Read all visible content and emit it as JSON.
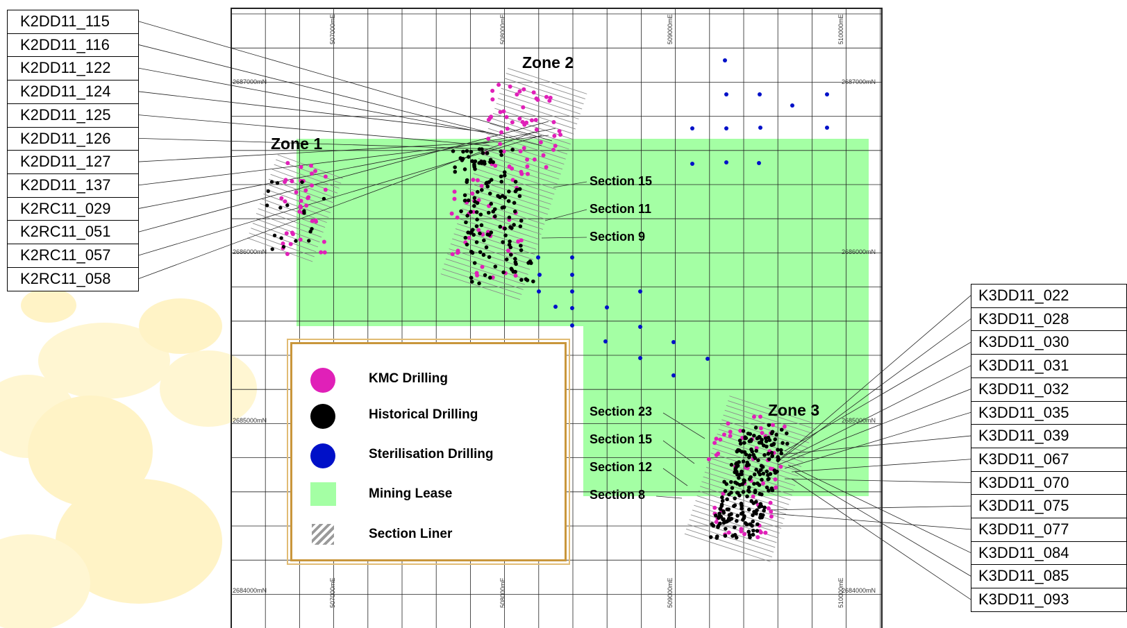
{
  "left_callouts": [
    "K2DD11_115",
    "K2DD11_116",
    "K2DD11_122",
    "K2DD11_124",
    "K2DD11_125",
    "K2DD11_126",
    "K2DD11_127",
    "K2DD11_137",
    "K2RC11_029",
    "K2RC11_051",
    "K2RC11_057",
    "K2RC11_058"
  ],
  "right_callouts": [
    "K3DD11_022",
    "K3DD11_028",
    "K3DD11_030",
    "K3DD11_031",
    "K3DD11_032",
    "K3DD11_035",
    "K3DD11_039",
    "K3DD11_067",
    "K3DD11_070",
    "K3DD11_075",
    "K3DD11_077",
    "K3DD11_084",
    "K3DD11_085",
    "K3DD11_093"
  ],
  "zones": {
    "zone1": "Zone 1",
    "zone2": "Zone 2",
    "zone3": "Zone 3"
  },
  "sections": {
    "zone2_s15": "Section 15",
    "zone2_s11": "Section 11",
    "zone2_s9": "Section 9",
    "zone3_s23": "Section 23",
    "zone3_s15": "Section 15",
    "zone3_s12": "Section 12",
    "zone3_s8": "Section 8"
  },
  "grid_labels": {
    "easting": [
      "507000mE",
      "508000mE",
      "509000mE",
      "510000mE"
    ],
    "northing": [
      "2687000mN",
      "2686000mN",
      "2685000mN",
      "2684000mN"
    ]
  },
  "legend": {
    "items": [
      {
        "label": "KMC Drilling",
        "symbol": "dot",
        "color": "#e020b8"
      },
      {
        "label": "Historical Drilling",
        "symbol": "dot",
        "color": "#000000"
      },
      {
        "label": "Sterilisation Drilling",
        "symbol": "dot",
        "color": "#0010c8"
      },
      {
        "label": "Mining Lease",
        "symbol": "rect",
        "color": "#a4ffa4"
      },
      {
        "label": "Section Liner",
        "symbol": "hatch",
        "color": "#9a9a9a"
      }
    ]
  },
  "colors": {
    "kmc": "#e020b8",
    "historical": "#000000",
    "sterilisation": "#0010c8",
    "lease": "#a4ffa4",
    "grid": "#222222",
    "legend_border": "#c9963b",
    "background_blobs": "#fff3c6"
  }
}
